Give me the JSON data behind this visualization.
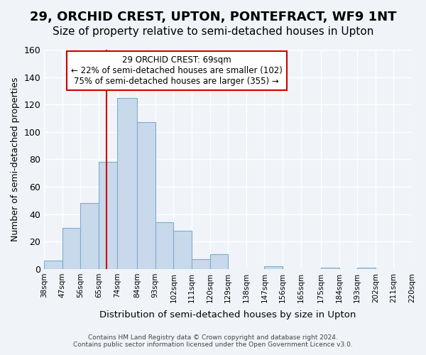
{
  "title": "29, ORCHID CREST, UPTON, PONTEFRACT, WF9 1NT",
  "subtitle": "Size of property relative to semi-detached houses in Upton",
  "xlabel": "Distribution of semi-detached houses by size in Upton",
  "ylabel": "Number of semi-detached properties",
  "bar_values": [
    6,
    30,
    48,
    78,
    125,
    107,
    34,
    28,
    7,
    11,
    0,
    0,
    2,
    0,
    0,
    1,
    0,
    1,
    0,
    0
  ],
  "bar_labels": [
    "38sqm",
    "47sqm",
    "56sqm",
    "65sqm",
    "74sqm",
    "84sqm",
    "93sqm",
    "102sqm",
    "111sqm",
    "120sqm",
    "129sqm",
    "138sqm",
    "147sqm",
    "156sqm",
    "165sqm",
    "175sqm",
    "184sqm",
    "193sqm",
    "202sqm",
    "211sqm",
    "220sqm"
  ],
  "bin_edges": [
    38,
    47,
    56,
    65,
    74,
    84,
    93,
    102,
    111,
    120,
    129,
    138,
    147,
    156,
    165,
    175,
    184,
    193,
    202,
    211,
    220
  ],
  "bar_color": "#c8d9eb",
  "bar_edge_color": "#7aaecf",
  "property_line_x": 69,
  "property_line_color": "#cc0000",
  "ylim": [
    0,
    160
  ],
  "annotation_title": "29 ORCHID CREST: 69sqm",
  "annotation_line1": "← 22% of semi-detached houses are smaller (102)",
  "annotation_line2": "75% of semi-detached houses are larger (355) →",
  "annotation_box_color": "#ffffff",
  "annotation_box_edge": "#cc0000",
  "footer_line1": "Contains HM Land Registry data © Crown copyright and database right 2024.",
  "footer_line2": "Contains public sector information licensed under the Open Government Licence v3.0.",
  "background_color": "#f0f4f8",
  "title_fontsize": 13,
  "subtitle_fontsize": 11
}
